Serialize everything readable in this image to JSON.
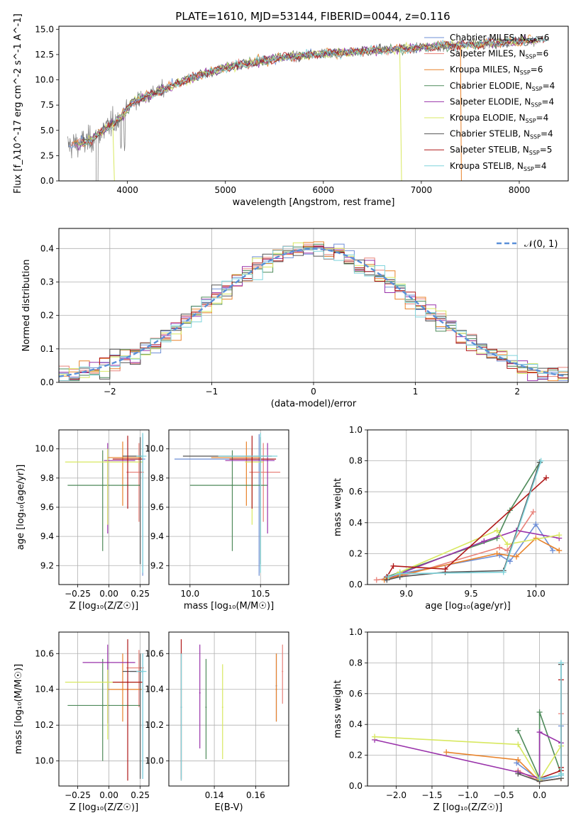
{
  "figure": {
    "title": "PLATE=1610, MJD=53144, FIBERID=0044, z=0.116"
  },
  "colors": {
    "chabrier_miles": "#6e8fd6",
    "salpeter_miles": "#e8827a",
    "kroupa_miles": "#e8822a",
    "chabrier_elodie": "#4e8a5a",
    "salpeter_elodie": "#9932aa",
    "kroupa_elodie": "#d8e860",
    "chabrier_stelib": "#555555",
    "salpeter_stelib": "#b01818",
    "kroupa_stelib": "#7fd4dc",
    "normal_curve": "#5a8fd8",
    "grid": "#b0b0b0"
  },
  "chart_data": [
    {
      "id": "spectrum",
      "type": "line",
      "xlabel": "wavelength [Angstrom, rest frame]",
      "ylabel": "Flux [f_λ10^-17 erg cm^-2 s^-1 A^-1]",
      "xlim": [
        3300,
        8500
      ],
      "ylim": [
        0,
        15.3
      ],
      "xticks": [
        4000,
        5000,
        6000,
        7000,
        8000
      ],
      "yticks": [
        0.0,
        2.5,
        5.0,
        7.5,
        10.0,
        12.5,
        15.0
      ],
      "grid": false,
      "legend_position": "top-right",
      "legend": [
        {
          "label": "Chabrier MILES, N",
          "sub": "SSP",
          "suffix": "=6",
          "color": "#6e8fd6"
        },
        {
          "label": "Salpeter MILES, N",
          "sub": "SSP",
          "suffix": "=6",
          "color": "#e8827a"
        },
        {
          "label": "Kroupa MILES, N",
          "sub": "SSP",
          "suffix": "=6",
          "color": "#e8822a"
        },
        {
          "label": "Chabrier ELODIE, N",
          "sub": "SSP",
          "suffix": "=4",
          "color": "#4e8a5a"
        },
        {
          "label": "Salpeter ELODIE, N",
          "sub": "SSP",
          "suffix": "=4",
          "color": "#9932aa"
        },
        {
          "label": "Kroupa ELODIE, N",
          "sub": "SSP",
          "suffix": "=4",
          "color": "#d8e860"
        },
        {
          "label": "Chabrier STELIB, N",
          "sub": "SSP",
          "suffix": "=4",
          "color": "#555555"
        },
        {
          "label": "Salpeter STELIB, N",
          "sub": "SSP",
          "suffix": "=5",
          "color": "#b01818"
        },
        {
          "label": "Kroupa STELIB, N",
          "sub": "SSP",
          "suffix": "=4",
          "color": "#7fd4dc"
        }
      ],
      "continuum": [
        [
          3400,
          3.5
        ],
        [
          3600,
          3.9
        ],
        [
          3800,
          5.3
        ],
        [
          3950,
          6.5
        ],
        [
          4050,
          7.8
        ],
        [
          4300,
          8.8
        ],
        [
          4600,
          10.0
        ],
        [
          5000,
          11.2
        ],
        [
          5500,
          12.1
        ],
        [
          6000,
          12.6
        ],
        [
          6500,
          12.9
        ],
        [
          7000,
          13.2
        ],
        [
          7500,
          13.5
        ],
        [
          8000,
          13.8
        ],
        [
          8300,
          14.0
        ]
      ],
      "spectrum_range": [
        3390,
        8300
      ]
    },
    {
      "id": "residuals",
      "type": "histogram",
      "xlabel": "(data-model)/error",
      "ylabel": "Normed distribution",
      "xlim": [
        -2.5,
        2.5
      ],
      "ylim": [
        0,
        0.46
      ],
      "xticks": [
        -2,
        -1,
        0,
        1,
        2
      ],
      "xtick_labels": [
        "−2",
        "−1",
        "0",
        "1",
        "2"
      ],
      "yticks": [
        0.0,
        0.1,
        0.2,
        0.3,
        0.4
      ],
      "grid": true,
      "bin_width": 0.1,
      "legend_position": "top-right",
      "legend": [
        {
          "label": "𝒩(0, 1)",
          "color": "#5a8fd8",
          "style": "dashed"
        }
      ]
    },
    {
      "id": "age_vs_Z",
      "type": "errorbar",
      "xlabel": "Z [log₁₀(Z/Z☉)]",
      "ylabel": "age  [log₁₀(age/yr)]",
      "xlim": [
        -0.4,
        0.32
      ],
      "ylim": [
        9.07,
        10.13
      ],
      "xticks": [
        -0.25,
        0.0,
        0.25
      ],
      "xtick_labels": [
        "−0.25",
        "0.00",
        "0.25"
      ],
      "yticks": [
        9.2,
        9.4,
        9.6,
        9.8,
        10.0
      ],
      "grid": true,
      "points": [
        {
          "model": "chabrier_miles",
          "x": 0.27,
          "xerr": [
            0.1,
            0.02
          ],
          "y": 9.93,
          "yerr": [
            0.8,
            0.17
          ]
        },
        {
          "model": "salpeter_miles",
          "x": 0.24,
          "xerr": [
            0.1,
            0.04
          ],
          "y": 9.84,
          "yerr": [
            0.34,
            0.2
          ]
        },
        {
          "model": "kroupa_miles",
          "x": 0.11,
          "xerr": [
            0.12,
            0.15
          ],
          "y": 9.94,
          "yerr": [
            0.33,
            0.11
          ]
        },
        {
          "model": "chabrier_elodie",
          "x": -0.05,
          "xerr": [
            0.28,
            0.3
          ],
          "y": 9.75,
          "yerr": [
            0.45,
            0.24
          ]
        },
        {
          "model": "salpeter_elodie",
          "x": -0.01,
          "xerr": [
            0.03,
            0.22
          ],
          "y": 9.92,
          "yerr": [
            0.5,
            0.12
          ]
        },
        {
          "model": "kroupa_elodie",
          "x": -0.01,
          "xerr": [
            0.34,
            0.28
          ],
          "y": 9.91,
          "yerr": [
            0.43,
            0.09
          ]
        },
        {
          "model": "chabrier_stelib",
          "x": 0.25,
          "xerr": [
            0.14,
            0.02
          ],
          "y": 9.95,
          "yerr": [
            0.74,
            0.13
          ]
        },
        {
          "model": "salpeter_stelib",
          "x": 0.15,
          "xerr": [
            0.12,
            0.12
          ],
          "y": 9.93,
          "yerr": [
            0.34,
            0.16
          ]
        },
        {
          "model": "kroupa_stelib",
          "x": 0.27,
          "xerr": [
            0.05,
            0.03
          ],
          "y": 9.95,
          "yerr": [
            0.8,
            0.16
          ]
        }
      ]
    },
    {
      "id": "age_vs_mass",
      "type": "errorbar",
      "xlabel": "mass [log₁₀(M/M☉)]",
      "ylabel": "",
      "xlim": [
        9.85,
        10.7
      ],
      "ylim": [
        9.07,
        10.13
      ],
      "xticks": [
        10.0,
        10.5
      ],
      "xtick_labels": [
        "10.0",
        "10.5"
      ],
      "yticks": [
        9.2,
        9.4,
        9.6,
        9.8,
        10.0
      ],
      "grid": true,
      "points": [
        {
          "model": "chabrier_miles",
          "x": 10.49,
          "xerr": [
            0.6,
            0.1
          ],
          "y": 9.93,
          "yerr": [
            0.8,
            0.17
          ]
        },
        {
          "model": "salpeter_miles",
          "x": 10.52,
          "xerr": [
            0.1,
            0.12
          ],
          "y": 9.84,
          "yerr": [
            0.34,
            0.2
          ]
        },
        {
          "model": "kroupa_miles",
          "x": 10.4,
          "xerr": [
            0.25,
            0.1
          ],
          "y": 9.94,
          "yerr": [
            0.33,
            0.11
          ]
        },
        {
          "model": "chabrier_elodie",
          "x": 10.3,
          "xerr": [
            0.3,
            0.25
          ],
          "y": 9.75,
          "yerr": [
            0.45,
            0.24
          ]
        },
        {
          "model": "salpeter_elodie",
          "x": 10.55,
          "xerr": [
            0.3,
            0.05
          ],
          "y": 9.92,
          "yerr": [
            0.5,
            0.12
          ]
        },
        {
          "model": "kroupa_elodie",
          "x": 10.44,
          "xerr": [
            0.05,
            0.08
          ],
          "y": 9.91,
          "yerr": [
            0.43,
            0.09
          ]
        },
        {
          "model": "chabrier_stelib",
          "x": 10.5,
          "xerr": [
            0.55,
            0.08
          ],
          "y": 9.95,
          "yerr": [
            0.74,
            0.13
          ]
        },
        {
          "model": "salpeter_stelib",
          "x": 10.44,
          "xerr": [
            0.16,
            0.17
          ],
          "y": 9.93,
          "yerr": [
            0.34,
            0.16
          ]
        },
        {
          "model": "kroupa_stelib",
          "x": 10.5,
          "xerr": [
            0.3,
            0.12
          ],
          "y": 9.95,
          "yerr": [
            0.8,
            0.16
          ]
        }
      ]
    },
    {
      "id": "weight_vs_age",
      "type": "line",
      "xlabel": "age  [log₁₀(age/yr)]",
      "ylabel": "mass weight",
      "xlim": [
        8.7,
        10.25
      ],
      "ylim": [
        0,
        1.0
      ],
      "xticks": [
        9.0,
        9.5,
        10.0
      ],
      "xtick_labels": [
        "9.0",
        "9.5",
        "10.0"
      ],
      "yticks": [
        0.0,
        0.2,
        0.4,
        0.6,
        0.8,
        1.0
      ],
      "grid": true,
      "series": [
        {
          "model": "chabrier_miles",
          "x": [
            8.84,
            8.95,
            9.72,
            9.8,
            10.0,
            10.13
          ],
          "y": [
            0.04,
            0.07,
            0.19,
            0.15,
            0.39,
            0.22
          ]
        },
        {
          "model": "salpeter_miles",
          "x": [
            8.77,
            8.95,
            9.72,
            9.78,
            9.98
          ],
          "y": [
            0.03,
            0.05,
            0.24,
            0.22,
            0.47
          ]
        },
        {
          "model": "kroupa_miles",
          "x": [
            8.83,
            8.95,
            9.7,
            9.85,
            10.0,
            10.18
          ],
          "y": [
            0.03,
            0.06,
            0.2,
            0.18,
            0.3,
            0.22
          ]
        },
        {
          "model": "chabrier_elodie",
          "x": [
            8.85,
            8.95,
            9.7,
            9.8,
            10.03
          ],
          "y": [
            0.05,
            0.08,
            0.3,
            0.48,
            0.79
          ]
        },
        {
          "model": "salpeter_elodie",
          "x": [
            8.85,
            8.95,
            9.6,
            9.85,
            10.18
          ],
          "y": [
            0.04,
            0.07,
            0.28,
            0.35,
            0.3
          ]
        },
        {
          "model": "kroupa_elodie",
          "x": [
            8.85,
            8.95,
            9.7,
            9.78,
            10.18
          ],
          "y": [
            0.04,
            0.08,
            0.35,
            0.26,
            0.32
          ]
        },
        {
          "model": "chabrier_stelib",
          "x": [
            8.85,
            8.95,
            9.3,
            9.75,
            10.03
          ],
          "y": [
            0.03,
            0.05,
            0.08,
            0.09,
            0.79
          ]
        },
        {
          "model": "salpeter_stelib",
          "x": [
            8.85,
            8.9,
            9.3,
            10.08
          ],
          "y": [
            0.05,
            0.12,
            0.1,
            0.69
          ]
        },
        {
          "model": "kroupa_stelib",
          "x": [
            8.86,
            8.95,
            9.75,
            10.04
          ],
          "y": [
            0.05,
            0.07,
            0.08,
            0.8
          ]
        }
      ]
    },
    {
      "id": "mass_vs_Z",
      "type": "errorbar",
      "xlabel": "Z [log₁₀(Z/Z☉)]",
      "ylabel": "mass [log₁₀(M/M☉)]",
      "xlim": [
        -0.4,
        0.32
      ],
      "ylim": [
        9.86,
        10.72
      ],
      "xticks": [
        -0.25,
        0.0,
        0.25
      ],
      "xtick_labels": [
        "−0.25",
        "0.00",
        "0.25"
      ],
      "yticks": [
        10.0,
        10.2,
        10.4,
        10.6
      ],
      "grid": true,
      "points": [
        {
          "model": "chabrier_miles",
          "x": 0.27,
          "xerr": [
            0.1,
            0.02
          ],
          "y": 10.5,
          "yerr": [
            0.6,
            0.1
          ]
        },
        {
          "model": "salpeter_miles",
          "x": 0.24,
          "xerr": [
            0.1,
            0.04
          ],
          "y": 10.52,
          "yerr": [
            0.22,
            0.1
          ]
        },
        {
          "model": "kroupa_miles",
          "x": 0.11,
          "xerr": [
            0.12,
            0.15
          ],
          "y": 10.4,
          "yerr": [
            0.18,
            0.2
          ]
        },
        {
          "model": "chabrier_elodie",
          "x": -0.05,
          "xerr": [
            0.28,
            0.3
          ],
          "y": 10.31,
          "yerr": [
            0.31,
            0.26
          ]
        },
        {
          "model": "salpeter_elodie",
          "x": -0.01,
          "xerr": [
            0.2,
            0.22
          ],
          "y": 10.55,
          "yerr": [
            0.34,
            0.1
          ]
        },
        {
          "model": "kroupa_elodie",
          "x": -0.01,
          "xerr": [
            0.34,
            0.28
          ],
          "y": 10.44,
          "yerr": [
            0.32,
            0.07
          ]
        },
        {
          "model": "chabrier_stelib",
          "x": 0.25,
          "xerr": [
            0.14,
            0.02
          ],
          "y": 10.5,
          "yerr": [
            0.6,
            0.1
          ]
        },
        {
          "model": "salpeter_stelib",
          "x": 0.15,
          "xerr": [
            0.12,
            0.12
          ],
          "y": 10.44,
          "yerr": [
            0.55,
            0.24
          ]
        },
        {
          "model": "kroupa_stelib",
          "x": 0.27,
          "xerr": [
            0.05,
            0.03
          ],
          "y": 10.5,
          "yerr": [
            0.6,
            0.1
          ]
        }
      ]
    },
    {
      "id": "mass_vs_ebv",
      "type": "errorbar",
      "xlabel": "E(B-V)",
      "ylabel": "",
      "xlim": [
        0.118,
        0.176
      ],
      "ylim": [
        9.86,
        10.72
      ],
      "xticks": [
        0.14,
        0.16
      ],
      "xtick_labels": [
        "0.14",
        "0.16"
      ],
      "yticks": [
        10.0,
        10.2,
        10.4,
        10.6
      ],
      "grid": true,
      "points": [
        {
          "model": "chabrier_miles",
          "x": 0.17,
          "y": 10.42,
          "yerr": [
            0.2,
            0.18
          ]
        },
        {
          "model": "salpeter_miles",
          "x": 0.173,
          "y": 10.5,
          "yerr": [
            0.18,
            0.15
          ]
        },
        {
          "model": "kroupa_miles",
          "x": 0.17,
          "y": 10.4,
          "yerr": [
            0.18,
            0.2
          ]
        },
        {
          "model": "chabrier_elodie",
          "x": 0.136,
          "y": 10.3,
          "yerr": [
            0.29,
            0.27
          ]
        },
        {
          "model": "salpeter_elodie",
          "x": 0.133,
          "y": 10.38,
          "yerr": [
            0.31,
            0.27
          ]
        },
        {
          "model": "kroupa_elodie",
          "x": 0.144,
          "y": 10.3,
          "yerr": [
            0.29,
            0.24
          ]
        },
        {
          "model": "chabrier_stelib",
          "x": 0.124,
          "y": 10.3,
          "yerr": [
            0.4,
            0.3
          ]
        },
        {
          "model": "salpeter_stelib",
          "x": 0.124,
          "y": 10.3,
          "yerr": [
            0.41,
            0.38
          ]
        },
        {
          "model": "kroupa_stelib",
          "x": 0.124,
          "y": 10.3,
          "yerr": [
            0.41,
            0.3
          ]
        }
      ]
    },
    {
      "id": "weight_vs_Z",
      "type": "line",
      "xlabel": "Z [log₁₀(Z/Z☉)]",
      "ylabel": "mass weight",
      "xlim": [
        -2.4,
        0.4
      ],
      "ylim": [
        0,
        1.0
      ],
      "xticks": [
        -2.0,
        -1.5,
        -1.0,
        -0.5,
        0.0
      ],
      "xtick_labels": [
        "−2.0",
        "−1.5",
        "−1.0",
        "−0.5",
        "0.0"
      ],
      "yticks": [
        0.0,
        0.2,
        0.4,
        0.6,
        0.8,
        1.0
      ],
      "grid": true,
      "series": [
        {
          "model": "chabrier_miles",
          "x": [
            -0.32,
            0.0,
            0.3,
            0.3
          ],
          "y": [
            0.15,
            0.04,
            0.07,
            0.39
          ]
        },
        {
          "model": "salpeter_miles",
          "x": [
            -0.3,
            0.0,
            0.3,
            0.3
          ],
          "y": [
            0.1,
            0.03,
            0.05,
            0.47
          ]
        },
        {
          "model": "kroupa_miles",
          "x": [
            -1.3,
            -0.3,
            0.0,
            0.3
          ],
          "y": [
            0.22,
            0.17,
            0.03,
            0.05
          ]
        },
        {
          "model": "chabrier_elodie",
          "x": [
            -0.3,
            0.0,
            0.0,
            0.3
          ],
          "y": [
            0.36,
            0.05,
            0.48,
            0.08
          ]
        },
        {
          "model": "salpeter_elodie",
          "x": [
            -2.3,
            -0.3,
            0.0,
            0.0,
            0.3
          ],
          "y": [
            0.3,
            0.09,
            0.05,
            0.35,
            0.28
          ]
        },
        {
          "model": "kroupa_elodie",
          "x": [
            -2.3,
            -0.3,
            0.0,
            0.3
          ],
          "y": [
            0.32,
            0.27,
            0.04,
            0.26
          ]
        },
        {
          "model": "chabrier_stelib",
          "x": [
            -0.3,
            0.0,
            0.3,
            0.3
          ],
          "y": [
            0.08,
            0.03,
            0.05,
            0.79
          ]
        },
        {
          "model": "salpeter_stelib",
          "x": [
            0.0,
            0.3,
            0.3,
            0.3
          ],
          "y": [
            0.05,
            0.1,
            0.12,
            0.69
          ]
        },
        {
          "model": "kroupa_stelib",
          "x": [
            0.0,
            0.3,
            0.3,
            0.3
          ],
          "y": [
            0.05,
            0.07,
            0.08,
            0.8
          ]
        }
      ]
    }
  ]
}
